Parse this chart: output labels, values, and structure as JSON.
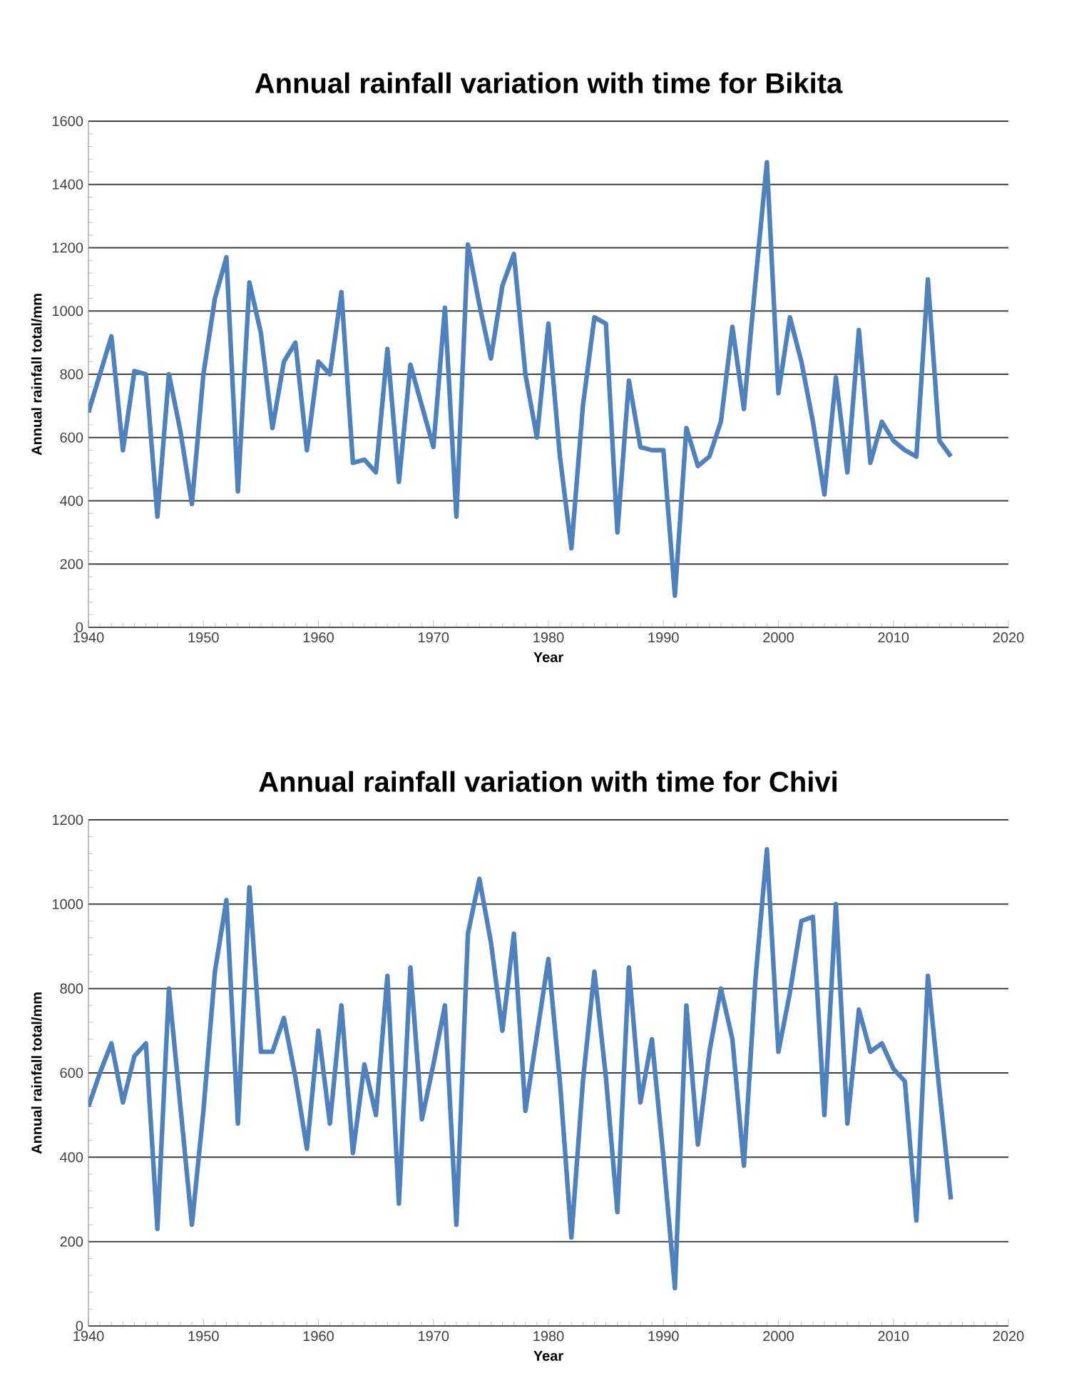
{
  "chart_data": [
    {
      "type": "line",
      "title": "Annual rainfall variation with time for Bikita",
      "xlabel": "Year",
      "ylabel": "Annual rainfall total/mm",
      "xlim": [
        1940,
        2020
      ],
      "ylim": [
        0,
        1600
      ],
      "xticks": [
        1940,
        1950,
        1960,
        1970,
        1980,
        1990,
        2000,
        2010,
        2020
      ],
      "yticks": [
        0,
        200,
        400,
        600,
        800,
        1000,
        1200,
        1400,
        1600
      ],
      "grid": "y",
      "marker": "none",
      "x": [
        1940,
        1941,
        1942,
        1943,
        1944,
        1945,
        1946,
        1947,
        1948,
        1949,
        1950,
        1951,
        1952,
        1953,
        1954,
        1955,
        1956,
        1957,
        1958,
        1959,
        1960,
        1961,
        1962,
        1963,
        1964,
        1965,
        1966,
        1967,
        1968,
        1969,
        1970,
        1971,
        1972,
        1973,
        1974,
        1975,
        1976,
        1977,
        1978,
        1979,
        1980,
        1981,
        1982,
        1983,
        1984,
        1985,
        1986,
        1987,
        1988,
        1989,
        1990,
        1991,
        1992,
        1993,
        1994,
        1995,
        1996,
        1997,
        1998,
        1999,
        2000,
        2001,
        2002,
        2003,
        2004,
        2005,
        2006,
        2007,
        2008,
        2009,
        2010,
        2011,
        2012,
        2013,
        2014,
        2015
      ],
      "series": [
        {
          "color": "#4f81bd",
          "values": [
            680,
            800,
            920,
            560,
            810,
            800,
            350,
            800,
            620,
            390,
            800,
            1040,
            1170,
            430,
            1090,
            930,
            630,
            840,
            900,
            560,
            840,
            800,
            1060,
            520,
            530,
            490,
            880,
            460,
            830,
            700,
            570,
            1010,
            350,
            1210,
            1020,
            850,
            1080,
            1180,
            800,
            600,
            960,
            540,
            250,
            700,
            980,
            960,
            300,
            780,
            570,
            560,
            560,
            100,
            630,
            510,
            540,
            650,
            950,
            690,
            1090,
            1470,
            740,
            980,
            840,
            650,
            420,
            790,
            490,
            940,
            520,
            650,
            590,
            560,
            540,
            1100,
            590,
            540
          ]
        }
      ]
    },
    {
      "type": "line",
      "title": "Annual rainfall variation with time for Chivi",
      "xlabel": "Year",
      "ylabel": "Annual rainfall total/mm",
      "xlim": [
        1940,
        2020
      ],
      "ylim": [
        0,
        1200
      ],
      "xticks": [
        1940,
        1950,
        1960,
        1970,
        1980,
        1990,
        2000,
        2010,
        2020
      ],
      "yticks": [
        0,
        200,
        400,
        600,
        800,
        1000,
        1200
      ],
      "grid": "y",
      "marker": "none",
      "x": [
        1940,
        1941,
        1942,
        1943,
        1944,
        1945,
        1946,
        1947,
        1948,
        1949,
        1950,
        1951,
        1952,
        1953,
        1954,
        1955,
        1956,
        1957,
        1958,
        1959,
        1960,
        1961,
        1962,
        1963,
        1964,
        1965,
        1966,
        1967,
        1968,
        1969,
        1970,
        1971,
        1972,
        1973,
        1974,
        1975,
        1976,
        1977,
        1978,
        1979,
        1980,
        1981,
        1982,
        1983,
        1984,
        1985,
        1986,
        1987,
        1988,
        1989,
        1990,
        1991,
        1992,
        1993,
        1994,
        1995,
        1996,
        1997,
        1998,
        1999,
        2000,
        2001,
        2002,
        2003,
        2004,
        2005,
        2006,
        2007,
        2008,
        2009,
        2010,
        2011,
        2012,
        2013,
        2014,
        2015
      ],
      "series": [
        {
          "color": "#4f81bd",
          "values": [
            520,
            600,
            670,
            530,
            640,
            670,
            230,
            800,
            520,
            240,
            510,
            840,
            1010,
            480,
            1040,
            650,
            650,
            730,
            590,
            420,
            700,
            480,
            760,
            410,
            620,
            500,
            830,
            290,
            850,
            490,
            620,
            760,
            240,
            930,
            1060,
            910,
            700,
            930,
            510,
            690,
            870,
            580,
            210,
            580,
            840,
            590,
            270,
            850,
            530,
            680,
            400,
            90,
            760,
            430,
            650,
            800,
            680,
            380,
            820,
            1130,
            650,
            790,
            960,
            970,
            500,
            1000,
            480,
            750,
            650,
            670,
            610,
            580,
            250,
            830,
            560,
            300
          ]
        }
      ]
    }
  ]
}
